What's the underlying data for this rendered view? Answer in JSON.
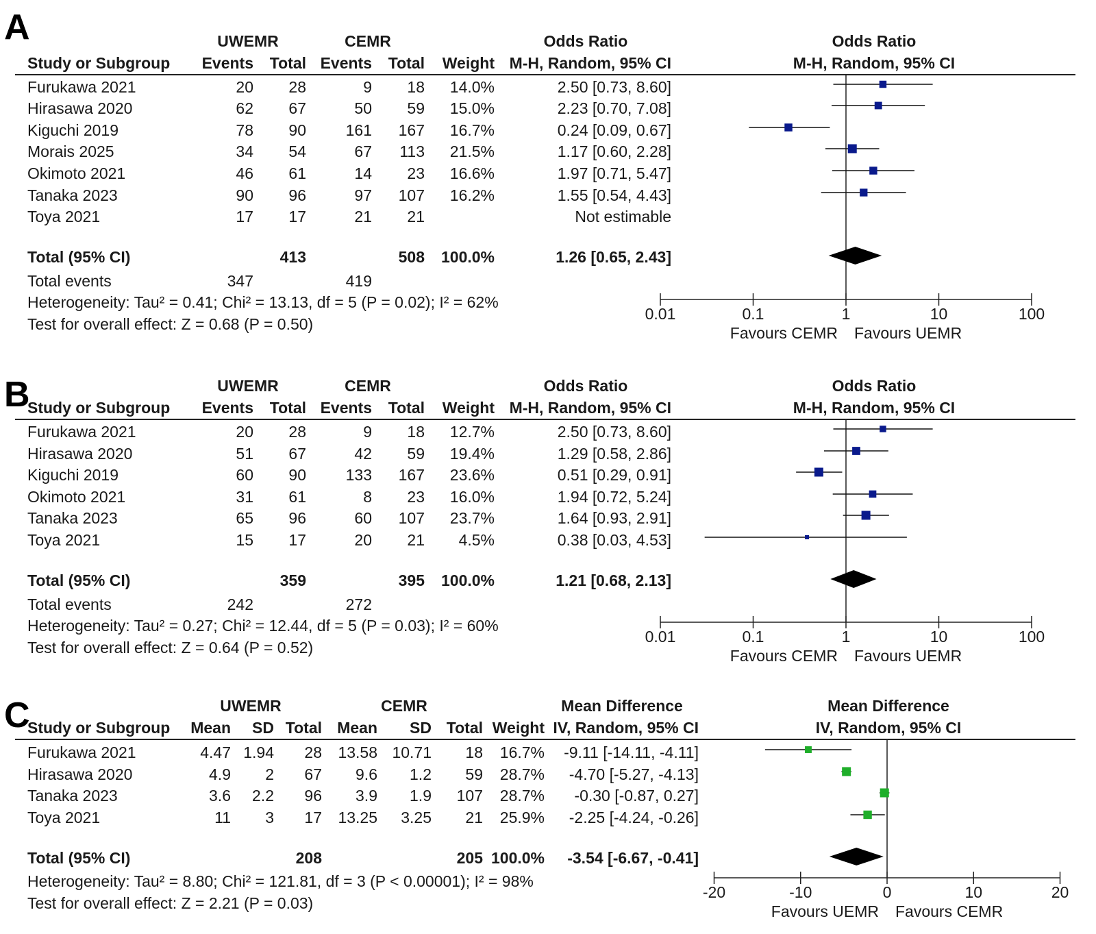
{
  "panels": [
    {
      "letter": "A",
      "kind": "binary",
      "group1": "UWEMR",
      "group2": "CEMR",
      "effect_title": "Odds Ratio",
      "effect_method": "M-H, Random, 95% CI",
      "col_headers": [
        "Study or Subgroup",
        "Events",
        "Total",
        "Events",
        "Total",
        "Weight",
        "M-H, Random, 95% CI"
      ],
      "total_label": "Total (95% CI)",
      "events_label": "Total events",
      "heterogeneity": "Heterogeneity: Tau² = 0.41; Chi² = 13.13, df = 5 (P = 0.02); I² = 62%",
      "overall": "Test for overall effect: Z = 0.68 (P = 0.50)",
      "favours_left": "Favours CEMR",
      "favours_right": "Favours UEMR",
      "ticks": [
        "0.01",
        "0.1",
        "1",
        "10",
        "100"
      ]
    },
    {
      "letter": "B",
      "kind": "binary",
      "group1": "UWEMR",
      "group2": "CEMR",
      "effect_title": "Odds Ratio",
      "effect_method": "M-H, Random, 95% CI",
      "col_headers": [
        "Study or Subgroup",
        "Events",
        "Total",
        "Events",
        "Total",
        "Weight",
        "M-H, Random, 95% CI"
      ],
      "total_label": "Total (95% CI)",
      "events_label": "Total events",
      "heterogeneity": "Heterogeneity: Tau² = 0.27; Chi² = 12.44, df = 5 (P = 0.03); I² = 60%",
      "overall": "Test for overall effect: Z = 0.64 (P = 0.52)",
      "favours_left": "Favours CEMR",
      "favours_right": "Favours UEMR",
      "ticks": [
        "0.01",
        "0.1",
        "1",
        "10",
        "100"
      ]
    },
    {
      "letter": "C",
      "kind": "continuous",
      "group1": "UWEMR",
      "group2": "CEMR",
      "effect_title": "Mean Difference",
      "effect_method": "IV, Random, 95% CI",
      "col_headers": [
        "Study or Subgroup",
        "Mean",
        "SD",
        "Total",
        "Mean",
        "SD",
        "Total",
        "Weight",
        "IV, Random, 95% CI"
      ],
      "total_label": "Total (95% CI)",
      "heterogeneity": "Heterogeneity: Tau² = 8.80; Chi² = 121.81, df = 3 (P < 0.00001); I² = 98%",
      "overall": "Test for overall effect: Z = 2.21 (P = 0.03)",
      "favours_left": "Favours UEMR",
      "favours_right": "Favours CEMR",
      "ticks": [
        "-20",
        "-10",
        "0",
        "10",
        "20"
      ]
    }
  ],
  "chart_data": [
    {
      "type": "forest",
      "scale": "log",
      "xlim": [
        0.01,
        100
      ],
      "studies": [
        {
          "name": "Furukawa 2021",
          "e1": "20",
          "t1": "28",
          "e2": "9",
          "t2": "18",
          "weight": "14.0%",
          "ci_text": "2.50 [0.73, 8.60]",
          "est": 2.5,
          "lo": 0.73,
          "hi": 8.6
        },
        {
          "name": "Hirasawa 2020",
          "e1": "62",
          "t1": "67",
          "e2": "50",
          "t2": "59",
          "weight": "15.0%",
          "ci_text": "2.23 [0.70, 7.08]",
          "est": 2.23,
          "lo": 0.7,
          "hi": 7.08
        },
        {
          "name": "Kiguchi 2019",
          "e1": "78",
          "t1": "90",
          "e2": "161",
          "t2": "167",
          "weight": "16.7%",
          "ci_text": "0.24 [0.09, 0.67]",
          "est": 0.24,
          "lo": 0.09,
          "hi": 0.67
        },
        {
          "name": "Morais 2025",
          "e1": "34",
          "t1": "54",
          "e2": "67",
          "t2": "113",
          "weight": "21.5%",
          "ci_text": "1.17 [0.60, 2.28]",
          "est": 1.17,
          "lo": 0.6,
          "hi": 2.28
        },
        {
          "name": "Okimoto 2021",
          "e1": "46",
          "t1": "61",
          "e2": "14",
          "t2": "23",
          "weight": "16.6%",
          "ci_text": "1.97 [0.71, 5.47]",
          "est": 1.97,
          "lo": 0.71,
          "hi": 5.47
        },
        {
          "name": "Tanaka 2023",
          "e1": "90",
          "t1": "96",
          "e2": "97",
          "t2": "107",
          "weight": "16.2%",
          "ci_text": "1.55 [0.54, 4.43]",
          "est": 1.55,
          "lo": 0.54,
          "hi": 4.43
        },
        {
          "name": "Toya 2021",
          "e1": "17",
          "t1": "17",
          "e2": "21",
          "t2": "21",
          "weight": "",
          "ci_text": "Not estimable",
          "est": null,
          "lo": null,
          "hi": null
        }
      ],
      "total": {
        "t1": "413",
        "t2": "508",
        "weight": "100.0%",
        "ci_text": "1.26 [0.65, 2.43]",
        "est": 1.26,
        "lo": 0.65,
        "hi": 2.43
      },
      "total_events": {
        "e1": "347",
        "e2": "419"
      }
    },
    {
      "type": "forest",
      "scale": "log",
      "xlim": [
        0.01,
        100
      ],
      "studies": [
        {
          "name": "Furukawa 2021",
          "e1": "20",
          "t1": "28",
          "e2": "9",
          "t2": "18",
          "weight": "12.7%",
          "ci_text": "2.50 [0.73, 8.60]",
          "est": 2.5,
          "lo": 0.73,
          "hi": 8.6
        },
        {
          "name": "Hirasawa 2020",
          "e1": "51",
          "t1": "67",
          "e2": "42",
          "t2": "59",
          "weight": "19.4%",
          "ci_text": "1.29 [0.58, 2.86]",
          "est": 1.29,
          "lo": 0.58,
          "hi": 2.86
        },
        {
          "name": "Kiguchi 2019",
          "e1": "60",
          "t1": "90",
          "e2": "133",
          "t2": "167",
          "weight": "23.6%",
          "ci_text": "0.51 [0.29, 0.91]",
          "est": 0.51,
          "lo": 0.29,
          "hi": 0.91
        },
        {
          "name": "Okimoto 2021",
          "e1": "31",
          "t1": "61",
          "e2": "8",
          "t2": "23",
          "weight": "16.0%",
          "ci_text": "1.94 [0.72, 5.24]",
          "est": 1.94,
          "lo": 0.72,
          "hi": 5.24
        },
        {
          "name": "Tanaka 2023",
          "e1": "65",
          "t1": "96",
          "e2": "60",
          "t2": "107",
          "weight": "23.7%",
          "ci_text": "1.64 [0.93, 2.91]",
          "est": 1.64,
          "lo": 0.93,
          "hi": 2.91
        },
        {
          "name": "Toya 2021",
          "e1": "15",
          "t1": "17",
          "e2": "20",
          "t2": "21",
          "weight": "4.5%",
          "ci_text": "0.38 [0.03, 4.53]",
          "est": 0.38,
          "lo": 0.03,
          "hi": 4.53
        }
      ],
      "total": {
        "t1": "359",
        "t2": "395",
        "weight": "100.0%",
        "ci_text": "1.21 [0.68, 2.13]",
        "est": 1.21,
        "lo": 0.68,
        "hi": 2.13
      },
      "total_events": {
        "e1": "242",
        "e2": "272"
      }
    },
    {
      "type": "forest",
      "scale": "linear",
      "xlim": [
        -20,
        20
      ],
      "studies": [
        {
          "name": "Furukawa 2021",
          "m1": "4.47",
          "sd1": "1.94",
          "t1": "28",
          "m2": "13.58",
          "sd2": "10.71",
          "t2": "18",
          "weight": "16.7%",
          "ci_text": "-9.11 [-14.11, -4.11]",
          "est": -9.11,
          "lo": -14.11,
          "hi": -4.11
        },
        {
          "name": "Hirasawa 2020",
          "m1": "4.9",
          "sd1": "2",
          "t1": "67",
          "m2": "9.6",
          "sd2": "1.2",
          "t2": "59",
          "weight": "28.7%",
          "ci_text": "-4.70 [-5.27, -4.13]",
          "est": -4.7,
          "lo": -5.27,
          "hi": -4.13
        },
        {
          "name": "Tanaka 2023",
          "m1": "3.6",
          "sd1": "2.2",
          "t1": "96",
          "m2": "3.9",
          "sd2": "1.9",
          "t2": "107",
          "weight": "28.7%",
          "ci_text": "-0.30 [-0.87, 0.27]",
          "est": -0.3,
          "lo": -0.87,
          "hi": 0.27
        },
        {
          "name": "Toya 2021",
          "m1": "11",
          "sd1": "3",
          "t1": "17",
          "m2": "13.25",
          "sd2": "3.25",
          "t2": "21",
          "weight": "25.9%",
          "ci_text": "-2.25 [-4.24, -0.26]",
          "est": -2.25,
          "lo": -4.24,
          "hi": -0.26
        }
      ],
      "total": {
        "t1": "208",
        "t2": "205",
        "weight": "100.0%",
        "ci_text": "-3.54 [-6.67, -0.41]",
        "est": -3.54,
        "lo": -6.67,
        "hi": -0.41
      }
    }
  ]
}
